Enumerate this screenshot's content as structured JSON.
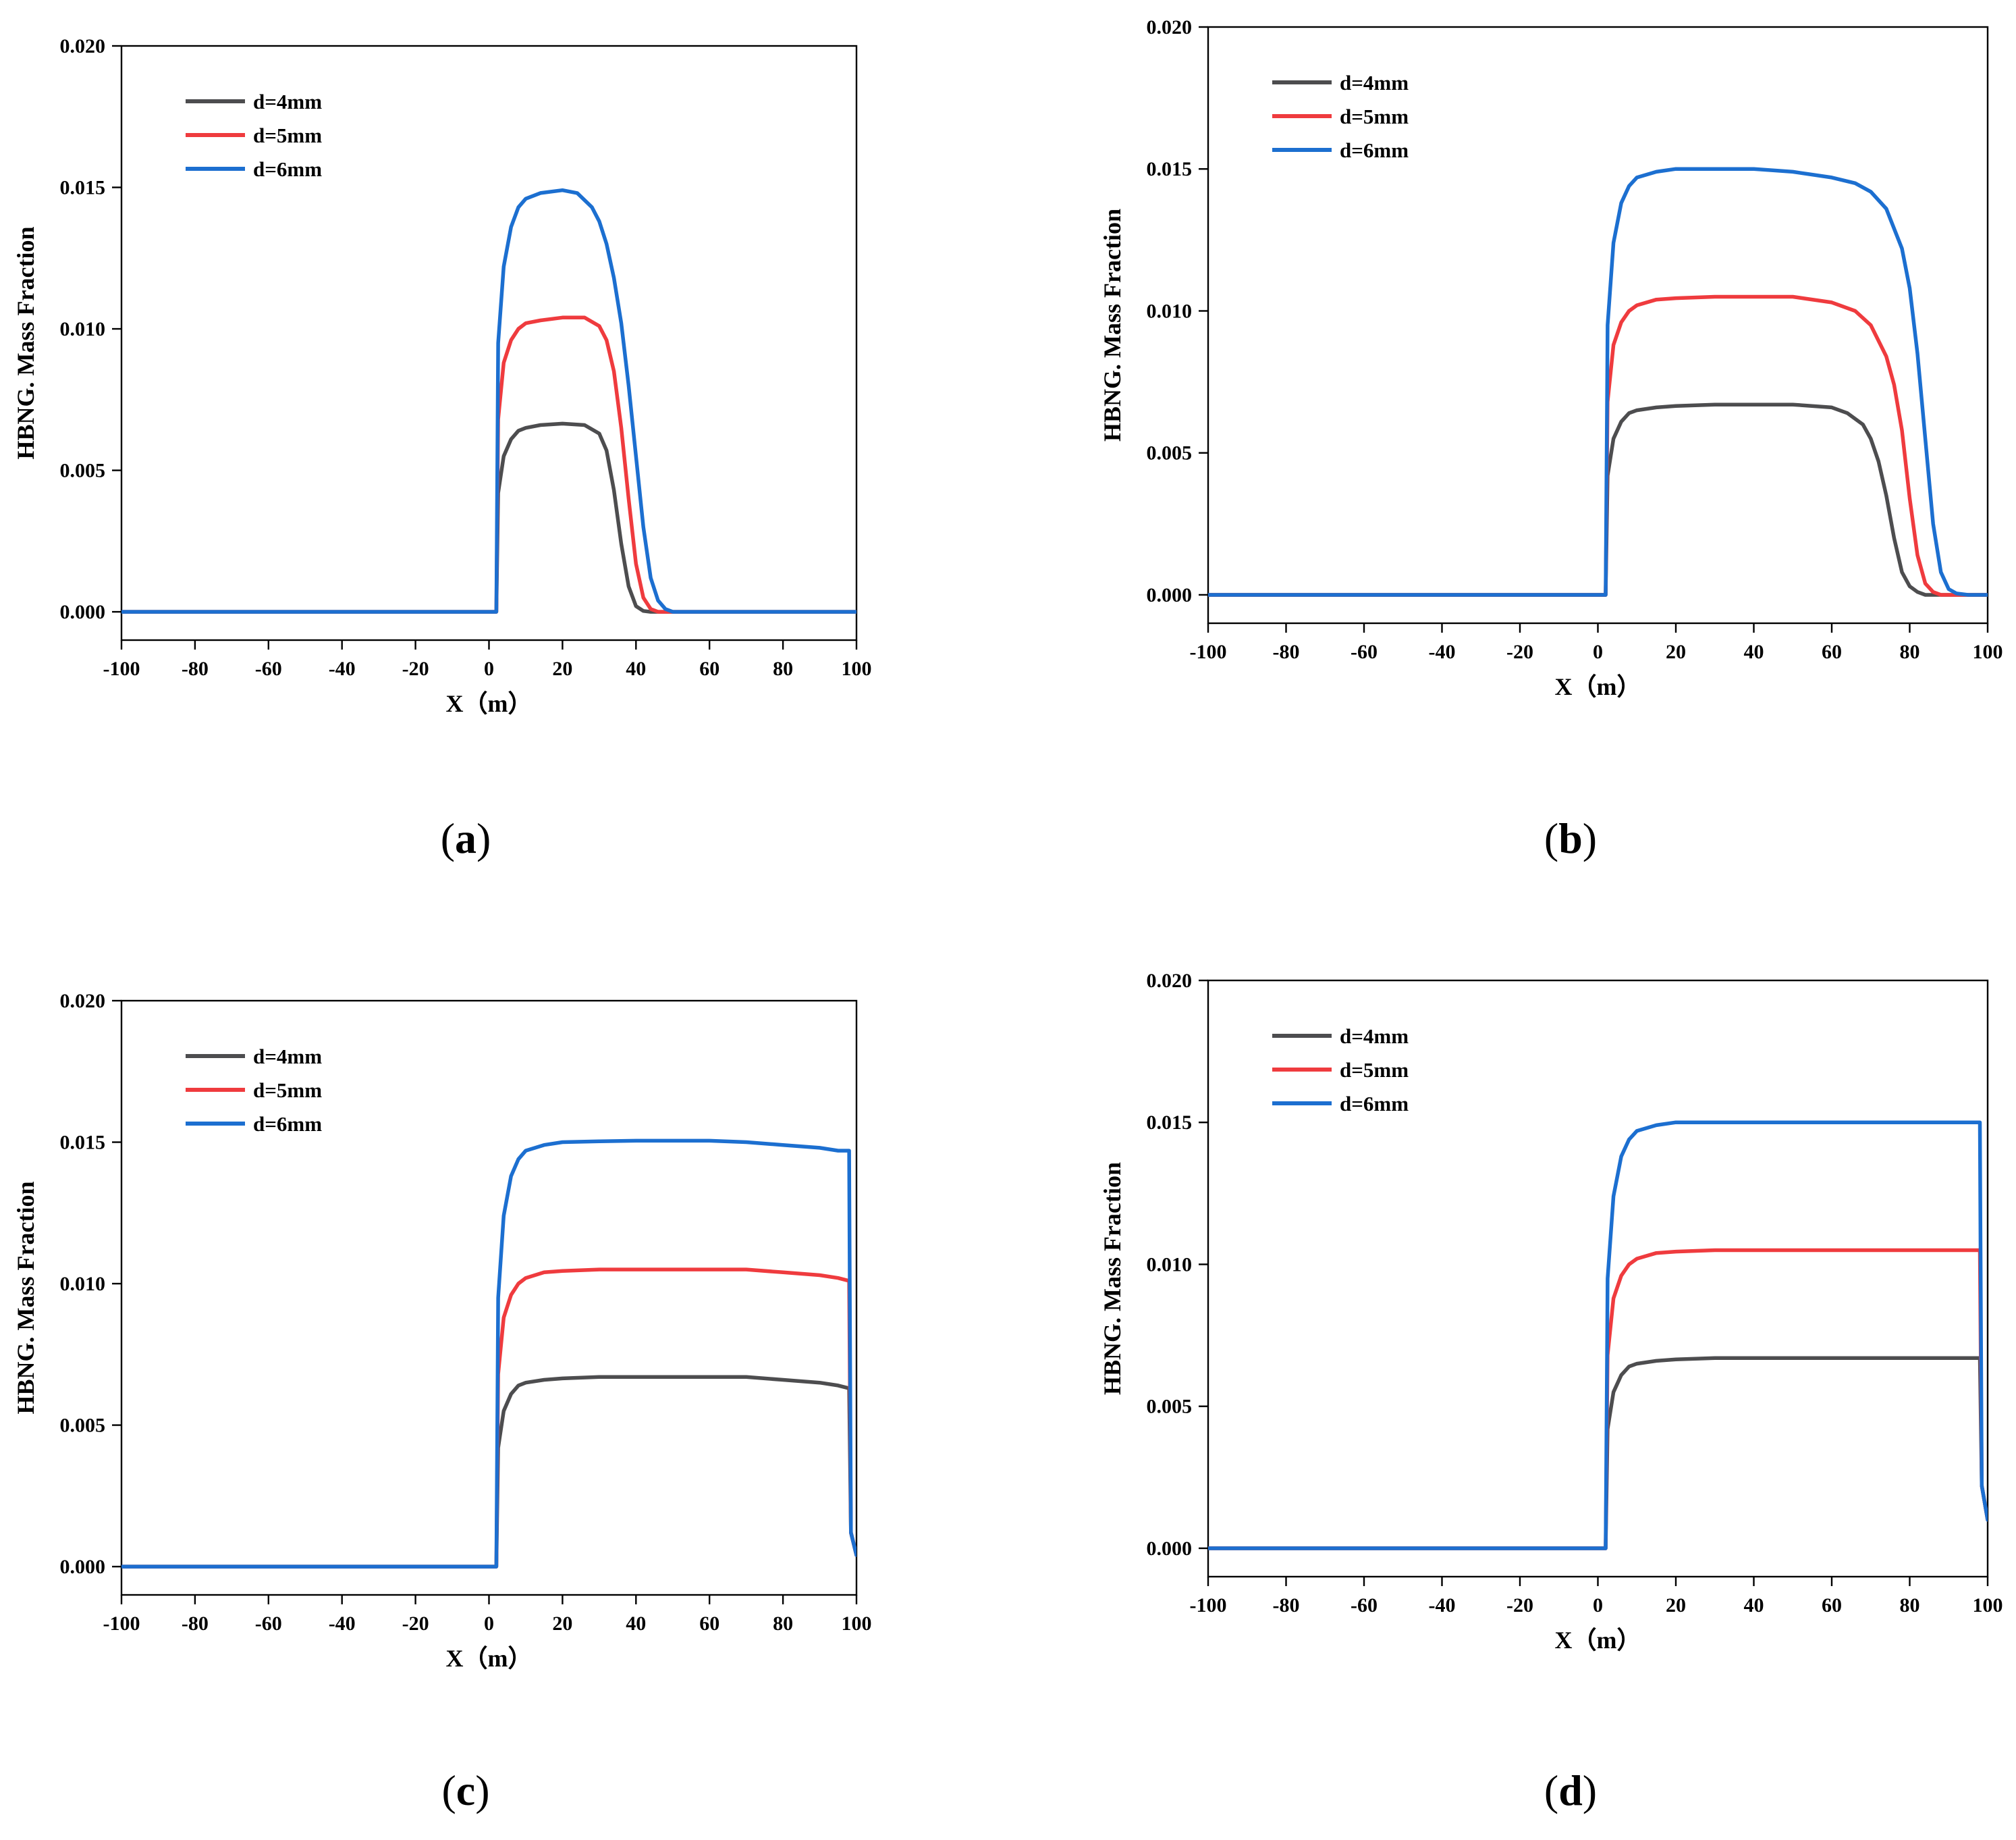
{
  "figure": {
    "series_colors": {
      "d=4mm": "#4d4d4f",
      "d=5mm": "#ef3b3e",
      "d=6mm": "#1c6fd0"
    }
  },
  "chart_data": [
    {
      "id": "a",
      "caption_letter": "a",
      "type": "line",
      "xlabel": "X（m）",
      "ylabel": "HBNG. Mass Fraction",
      "xlim": [
        -100,
        100
      ],
      "ylim": [
        -0.001,
        0.02
      ],
      "xticks": [
        -100,
        -80,
        -60,
        -40,
        -20,
        0,
        20,
        40,
        60,
        80,
        100
      ],
      "yticks": [
        0.0,
        0.005,
        0.01,
        0.015,
        0.02
      ],
      "ytick_labels": [
        "0.000",
        "0.005",
        "0.010",
        "0.015",
        "0.020"
      ],
      "legend": [
        "d=4mm",
        "d=5mm",
        "d=6mm"
      ],
      "legend_location": "top-left",
      "series": [
        {
          "name": "d=4mm",
          "color": "#4d4d4f",
          "x": [
            -100,
            2,
            2.5,
            4,
            6,
            8,
            10,
            14,
            20,
            26,
            30,
            32,
            34,
            36,
            38,
            40,
            42,
            44,
            46,
            100
          ],
          "y": [
            0,
            0,
            0.0042,
            0.0055,
            0.0061,
            0.0064,
            0.0065,
            0.0066,
            0.00665,
            0.0066,
            0.0063,
            0.0057,
            0.0043,
            0.0024,
            0.0009,
            0.0002,
            3e-05,
            0,
            0,
            0
          ]
        },
        {
          "name": "d=5mm",
          "color": "#ef3b3e",
          "x": [
            -100,
            2,
            2.5,
            4,
            6,
            8,
            10,
            14,
            20,
            26,
            30,
            32,
            34,
            36,
            38,
            40,
            42,
            44,
            46,
            48,
            100
          ],
          "y": [
            0,
            0,
            0.0068,
            0.0088,
            0.0096,
            0.01,
            0.0102,
            0.0103,
            0.0104,
            0.0104,
            0.0101,
            0.0096,
            0.0085,
            0.0065,
            0.004,
            0.0017,
            0.0005,
            0.0001,
            0,
            0,
            0
          ]
        },
        {
          "name": "d=6mm",
          "color": "#1c6fd0",
          "x": [
            -100,
            2,
            2.5,
            4,
            6,
            8,
            10,
            14,
            20,
            24,
            28,
            30,
            32,
            34,
            36,
            38,
            40,
            42,
            44,
            46,
            48,
            50,
            100
          ],
          "y": [
            0,
            0,
            0.0095,
            0.0122,
            0.0136,
            0.0143,
            0.0146,
            0.0148,
            0.0149,
            0.0148,
            0.0143,
            0.0138,
            0.013,
            0.0118,
            0.0102,
            0.008,
            0.0055,
            0.003,
            0.0012,
            0.0004,
            0.0001,
            0,
            0
          ]
        }
      ]
    },
    {
      "id": "b",
      "caption_letter": "b",
      "type": "line",
      "xlabel": "X（m）",
      "ylabel": "HBNG. Mass Fraction",
      "xlim": [
        -100,
        100
      ],
      "ylim": [
        -0.001,
        0.02
      ],
      "xticks": [
        -100,
        -80,
        -60,
        -40,
        -20,
        0,
        20,
        40,
        60,
        80,
        100
      ],
      "yticks": [
        0.0,
        0.005,
        0.01,
        0.015,
        0.02
      ],
      "ytick_labels": [
        "0.000",
        "0.005",
        "0.010",
        "0.015",
        "0.020"
      ],
      "legend": [
        "d=4mm",
        "d=5mm",
        "d=6mm"
      ],
      "legend_location": "top-left",
      "series": [
        {
          "name": "d=4mm",
          "color": "#4d4d4f",
          "x": [
            -100,
            2,
            2.5,
            4,
            6,
            8,
            10,
            15,
            20,
            30,
            40,
            50,
            60,
            64,
            68,
            70,
            72,
            74,
            76,
            78,
            80,
            82,
            84,
            86,
            100
          ],
          "y": [
            0,
            0,
            0.0042,
            0.0055,
            0.0061,
            0.0064,
            0.0065,
            0.0066,
            0.00665,
            0.0067,
            0.0067,
            0.0067,
            0.0066,
            0.0064,
            0.006,
            0.0055,
            0.0047,
            0.0035,
            0.002,
            0.0008,
            0.0003,
            0.0001,
            0,
            0,
            0
          ]
        },
        {
          "name": "d=5mm",
          "color": "#ef3b3e",
          "x": [
            -100,
            2,
            2.5,
            4,
            6,
            8,
            10,
            15,
            20,
            30,
            40,
            50,
            60,
            66,
            70,
            74,
            76,
            78,
            80,
            82,
            84,
            86,
            88,
            90,
            100
          ],
          "y": [
            0,
            0,
            0.0068,
            0.0088,
            0.0096,
            0.01,
            0.0102,
            0.0104,
            0.01045,
            0.0105,
            0.0105,
            0.0105,
            0.0103,
            0.01,
            0.0095,
            0.0084,
            0.0074,
            0.0058,
            0.0034,
            0.0014,
            0.0004,
            0.0001,
            0,
            0,
            0
          ]
        },
        {
          "name": "d=6mm",
          "color": "#1c6fd0",
          "x": [
            -100,
            2,
            2.5,
            4,
            6,
            8,
            10,
            15,
            20,
            30,
            40,
            50,
            60,
            66,
            70,
            74,
            78,
            80,
            82,
            84,
            86,
            88,
            90,
            92,
            95,
            100
          ],
          "y": [
            0,
            0,
            0.0095,
            0.0124,
            0.0138,
            0.0144,
            0.0147,
            0.0149,
            0.015,
            0.015,
            0.015,
            0.0149,
            0.0147,
            0.0145,
            0.0142,
            0.0136,
            0.0122,
            0.0108,
            0.0085,
            0.0055,
            0.0025,
            0.0008,
            0.0002,
            5e-05,
            0,
            0
          ]
        }
      ]
    },
    {
      "id": "c",
      "caption_letter": "c",
      "type": "line",
      "xlabel": "X（m）",
      "ylabel": "HBNG. Mass Fraction",
      "xlim": [
        -100,
        100
      ],
      "ylim": [
        -0.001,
        0.02
      ],
      "xticks": [
        -100,
        -80,
        -60,
        -40,
        -20,
        0,
        20,
        40,
        60,
        80,
        100
      ],
      "yticks": [
        0.0,
        0.005,
        0.01,
        0.015,
        0.02
      ],
      "ytick_labels": [
        "0.000",
        "0.005",
        "0.010",
        "0.015",
        "0.020"
      ],
      "legend": [
        "d=4mm",
        "d=5mm",
        "d=6mm"
      ],
      "legend_location": "top-left",
      "series": [
        {
          "name": "d=4mm",
          "color": "#4d4d4f",
          "x": [
            -100,
            2,
            2.5,
            4,
            6,
            8,
            10,
            15,
            20,
            30,
            40,
            50,
            60,
            70,
            80,
            90,
            95,
            98,
            98.5,
            100
          ],
          "y": [
            0,
            0,
            0.0042,
            0.0055,
            0.0061,
            0.0064,
            0.0065,
            0.0066,
            0.00665,
            0.0067,
            0.0067,
            0.0067,
            0.0067,
            0.0067,
            0.0066,
            0.0065,
            0.0064,
            0.0063,
            0.0012,
            0.0004
          ]
        },
        {
          "name": "d=5mm",
          "color": "#ef3b3e",
          "x": [
            -100,
            2,
            2.5,
            4,
            6,
            8,
            10,
            15,
            20,
            30,
            40,
            50,
            60,
            70,
            80,
            90,
            95,
            98,
            98.5,
            100
          ],
          "y": [
            0,
            0,
            0.0068,
            0.0088,
            0.0096,
            0.01,
            0.0102,
            0.0104,
            0.01045,
            0.0105,
            0.0105,
            0.0105,
            0.0105,
            0.0105,
            0.0104,
            0.0103,
            0.0102,
            0.0101,
            0.0012,
            0.0004
          ]
        },
        {
          "name": "d=6mm",
          "color": "#1c6fd0",
          "x": [
            -100,
            2,
            2.5,
            4,
            6,
            8,
            10,
            15,
            20,
            30,
            40,
            50,
            60,
            70,
            80,
            90,
            95,
            98,
            98.5,
            100
          ],
          "y": [
            0,
            0,
            0.0095,
            0.0124,
            0.0138,
            0.0144,
            0.0147,
            0.0149,
            0.015,
            0.01503,
            0.01505,
            0.01505,
            0.01505,
            0.015,
            0.0149,
            0.0148,
            0.0147,
            0.0147,
            0.0012,
            0.0004
          ]
        }
      ]
    },
    {
      "id": "d",
      "caption_letter": "d",
      "type": "line",
      "xlabel": "X（m）",
      "ylabel": "HBNG. Mass Fraction",
      "xlim": [
        -100,
        100
      ],
      "ylim": [
        -0.001,
        0.02
      ],
      "xticks": [
        -100,
        -80,
        -60,
        -40,
        -20,
        0,
        20,
        40,
        60,
        80,
        100
      ],
      "yticks": [
        0.0,
        0.005,
        0.01,
        0.015,
        0.02
      ],
      "ytick_labels": [
        "0.000",
        "0.005",
        "0.010",
        "0.015",
        "0.020"
      ],
      "legend": [
        "d=4mm",
        "d=5mm",
        "d=6mm"
      ],
      "legend_location": "top-left",
      "series": [
        {
          "name": "d=4mm",
          "color": "#4d4d4f",
          "x": [
            -100,
            2,
            2.5,
            4,
            6,
            8,
            10,
            15,
            20,
            30,
            40,
            50,
            60,
            70,
            80,
            90,
            98,
            98.5,
            100
          ],
          "y": [
            0,
            0,
            0.0042,
            0.0055,
            0.0061,
            0.0064,
            0.0065,
            0.0066,
            0.00665,
            0.0067,
            0.0067,
            0.0067,
            0.0067,
            0.0067,
            0.0067,
            0.0067,
            0.0067,
            0.0022,
            0.001
          ]
        },
        {
          "name": "d=5mm",
          "color": "#ef3b3e",
          "x": [
            -100,
            2,
            2.5,
            4,
            6,
            8,
            10,
            15,
            20,
            30,
            40,
            50,
            60,
            70,
            80,
            90,
            98,
            98.5,
            100
          ],
          "y": [
            0,
            0,
            0.0068,
            0.0088,
            0.0096,
            0.01,
            0.0102,
            0.0104,
            0.01045,
            0.0105,
            0.0105,
            0.0105,
            0.0105,
            0.0105,
            0.0105,
            0.0105,
            0.0105,
            0.0022,
            0.001
          ]
        },
        {
          "name": "d=6mm",
          "color": "#1c6fd0",
          "x": [
            -100,
            2,
            2.5,
            4,
            6,
            8,
            10,
            15,
            20,
            30,
            40,
            50,
            60,
            70,
            80,
            90,
            98,
            98.5,
            100
          ],
          "y": [
            0,
            0,
            0.0095,
            0.0124,
            0.0138,
            0.0144,
            0.0147,
            0.0149,
            0.015,
            0.015,
            0.015,
            0.015,
            0.015,
            0.015,
            0.015,
            0.015,
            0.015,
            0.0022,
            0.001
          ]
        }
      ]
    }
  ]
}
